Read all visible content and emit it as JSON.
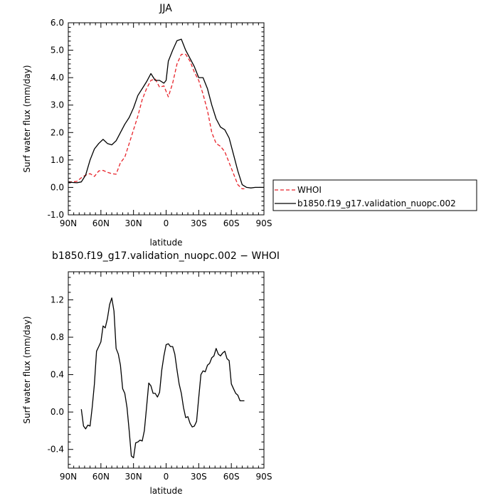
{
  "chart_data": [
    {
      "type": "line",
      "title": "JJA",
      "xlabel": "latitude",
      "ylabel": "Surf water flux (mm/day)",
      "xlim": [
        90,
        -90
      ],
      "ylim": [
        -1.0,
        6.0
      ],
      "x_ticks": [
        90,
        60,
        30,
        0,
        -30,
        -60,
        -90
      ],
      "x_tick_labels": [
        "90N",
        "60N",
        "30N",
        "0",
        "30S",
        "60S",
        "90S"
      ],
      "y_ticks": [
        -1.0,
        0.0,
        1.0,
        2.0,
        3.0,
        4.0,
        5.0,
        6.0
      ],
      "y_tick_labels": [
        "-1.0",
        "0.0",
        "1.0",
        "2.0",
        "3.0",
        "4.0",
        "5.0",
        "6.0"
      ],
      "legend": {
        "placement": "right",
        "entries": [
          "WHOI",
          "b1850.f19_g17.validation_nuopc.002"
        ]
      },
      "series": [
        {
          "name": "WHOI",
          "color": "#e8232a",
          "dash": "dashed",
          "x": [
            90,
            86,
            82,
            78,
            74,
            70,
            66,
            62,
            58,
            54,
            50,
            46,
            42,
            38,
            34,
            30,
            26,
            22,
            18,
            14,
            10,
            6,
            2,
            0,
            -2,
            -6,
            -10,
            -14,
            -18,
            -22,
            -26,
            -30,
            -34,
            -38,
            -42,
            -46,
            -50,
            -54,
            -58,
            -62,
            -66,
            -70,
            -72
          ],
          "y": [
            0.2,
            0.2,
            0.22,
            0.35,
            0.45,
            0.5,
            0.4,
            0.6,
            0.62,
            0.55,
            0.5,
            0.48,
            0.9,
            1.1,
            1.6,
            2.1,
            2.6,
            3.2,
            3.6,
            3.9,
            3.95,
            3.65,
            3.7,
            3.5,
            3.3,
            3.8,
            4.5,
            4.85,
            4.85,
            4.6,
            4.2,
            3.9,
            3.4,
            2.8,
            2.0,
            1.6,
            1.5,
            1.3,
            0.9,
            0.5,
            0.1,
            -0.05,
            -0.05
          ]
        },
        {
          "name": "b1850.f19_g17.validation_nuopc.002",
          "color": "#000000",
          "dash": "solid",
          "x": [
            90,
            86,
            82,
            78,
            74,
            70,
            66,
            62,
            58,
            54,
            50,
            46,
            42,
            38,
            34,
            30,
            26,
            22,
            18,
            14,
            10,
            6,
            2,
            0,
            -2,
            -6,
            -10,
            -14,
            -18,
            -22,
            -26,
            -30,
            -34,
            -38,
            -42,
            -46,
            -50,
            -54,
            -58,
            -62,
            -66,
            -70,
            -74,
            -78,
            -82,
            -86,
            -90
          ],
          "y": [
            0.2,
            0.18,
            0.17,
            0.2,
            0.45,
            1.0,
            1.4,
            1.6,
            1.75,
            1.6,
            1.55,
            1.7,
            2.0,
            2.3,
            2.55,
            2.9,
            3.35,
            3.6,
            3.85,
            4.15,
            3.9,
            3.9,
            3.8,
            3.9,
            4.6,
            5.0,
            5.35,
            5.4,
            5.0,
            4.7,
            4.4,
            4.0,
            4.0,
            3.6,
            3.0,
            2.5,
            2.2,
            2.1,
            1.8,
            1.2,
            0.6,
            0.1,
            0.0,
            -0.02,
            0.0,
            0.0,
            0.0
          ]
        }
      ]
    },
    {
      "type": "line",
      "title": "b1850.f19_g17.validation_nuopc.002 − WHOI",
      "xlabel": "latitude",
      "ylabel": "Surf water flux (mm/day)",
      "xlim": [
        90,
        -90
      ],
      "ylim": [
        -0.6,
        1.5
      ],
      "x_ticks": [
        90,
        60,
        30,
        0,
        -30,
        -60,
        -90
      ],
      "x_tick_labels": [
        "90N",
        "60N",
        "30N",
        "0",
        "30S",
        "60S",
        "90S"
      ],
      "y_ticks": [
        -0.4,
        0.0,
        0.4,
        0.8,
        1.2
      ],
      "y_tick_labels": [
        "-0.4",
        "0.0",
        "0.4",
        "0.8",
        "1.2"
      ],
      "series": [
        {
          "color": "#000000",
          "dash": "solid",
          "x": [
            78,
            76,
            74,
            72,
            70,
            68,
            66,
            64,
            62,
            60,
            58,
            56,
            54,
            52,
            50,
            48,
            46,
            44,
            42,
            40,
            38,
            36,
            34,
            32,
            30,
            28,
            26,
            24,
            22,
            20,
            18,
            16,
            14,
            12,
            10,
            8,
            6,
            4,
            2,
            0,
            -2,
            -4,
            -6,
            -8,
            -10,
            -12,
            -14,
            -16,
            -18,
            -20,
            -22,
            -24,
            -26,
            -28,
            -30,
            -32,
            -34,
            -36,
            -38,
            -40,
            -42,
            -44,
            -46,
            -48,
            -50,
            -52,
            -54,
            -56,
            -58,
            -60,
            -62,
            -64,
            -66,
            -68,
            -70,
            -72
          ],
          "y": [
            0.03,
            -0.15,
            -0.18,
            -0.14,
            -0.15,
            0.05,
            0.3,
            0.65,
            0.7,
            0.75,
            0.92,
            0.9,
            1.0,
            1.15,
            1.22,
            1.08,
            0.68,
            0.62,
            0.5,
            0.25,
            0.2,
            0.05,
            -0.2,
            -0.47,
            -0.49,
            -0.33,
            -0.32,
            -0.3,
            -0.31,
            -0.2,
            0.05,
            0.31,
            0.28,
            0.2,
            0.2,
            0.16,
            0.21,
            0.45,
            0.6,
            0.72,
            0.73,
            0.7,
            0.7,
            0.62,
            0.45,
            0.3,
            0.2,
            0.05,
            -0.06,
            -0.05,
            -0.12,
            -0.16,
            -0.15,
            -0.1,
            0.15,
            0.4,
            0.44,
            0.43,
            0.5,
            0.52,
            0.58,
            0.6,
            0.68,
            0.62,
            0.6,
            0.63,
            0.65,
            0.57,
            0.55,
            0.3,
            0.25,
            0.2,
            0.18,
            0.12,
            0.12,
            0.12
          ]
        }
      ]
    }
  ]
}
